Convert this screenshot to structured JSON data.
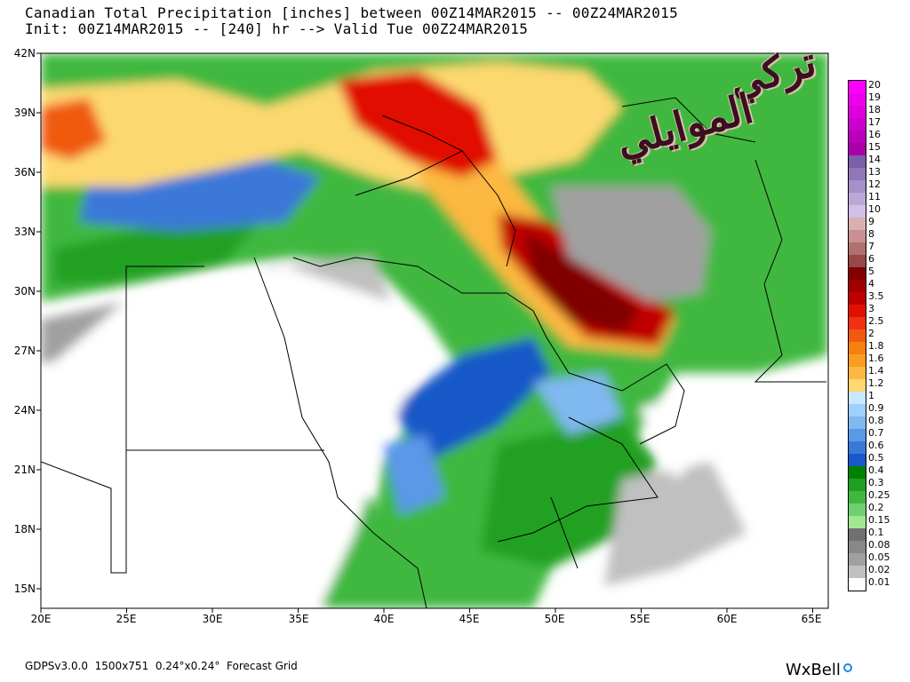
{
  "header": {
    "line1": "Canadian Total Precipitation [inches] between 00Z14MAR2015 -- 00Z24MAR2015",
    "line2": "Init: 00Z14MAR2015 -- [240] hr --> Valid Tue 00Z24MAR2015"
  },
  "axes": {
    "lat_labels": [
      "42N",
      "39N",
      "36N",
      "33N",
      "30N",
      "27N",
      "24N",
      "21N",
      "18N",
      "15N"
    ],
    "lon_labels": [
      "20E",
      "25E",
      "30E",
      "35E",
      "40E",
      "45E",
      "50E",
      "55E",
      "60E",
      "65E"
    ]
  },
  "legend": {
    "levels": [
      "20",
      "19",
      "18",
      "17",
      "16",
      "15",
      "14",
      "13",
      "12",
      "11",
      "10",
      "9",
      "8",
      "7",
      "6",
      "5",
      "4",
      "3.5",
      "3",
      "2.5",
      "2",
      "1.8",
      "1.6",
      "1.4",
      "1.2",
      "1",
      "0.9",
      "0.8",
      "0.7",
      "0.6",
      "0.5",
      "0.4",
      "0.3",
      "0.25",
      "0.2",
      "0.15",
      "0.1",
      "0.08",
      "0.05",
      "0.02",
      "0.01"
    ],
    "colors": [
      "#ff00ff",
      "#ee00ee",
      "#dd00dd",
      "#cc00cc",
      "#bb00bb",
      "#aa00aa",
      "#7b5fa8",
      "#9077b8",
      "#a590c8",
      "#bba8d8",
      "#d0c0e8",
      "#d8b0b0",
      "#c89090",
      "#b07070",
      "#984848",
      "#800000",
      "#a00000",
      "#c00000",
      "#e01000",
      "#f03010",
      "#f05a10",
      "#f58010",
      "#fa9c20",
      "#fcb840",
      "#fdd870",
      "#c8e8ff",
      "#a0d0ff",
      "#80b8f0",
      "#5a98e8",
      "#3a78d8",
      "#1858c8",
      "#008000",
      "#20a020",
      "#40b840",
      "#70d070",
      "#a0e890",
      "#707070",
      "#888888",
      "#a0a0a0",
      "#c0c0c0",
      "#ffffff"
    ]
  },
  "watermark": {
    "part1": "تركي",
    "part2": "الموايلي",
    "part3": ""
  },
  "footer": {
    "model_info": "GDPSv3.0.0  1500x751  0.24°x0.24°  Forecast Grid",
    "brand": "WxBell"
  },
  "colors": {
    "land_bg": "#ffffff",
    "border": "#000000",
    "dark_red_max": "#800000"
  }
}
